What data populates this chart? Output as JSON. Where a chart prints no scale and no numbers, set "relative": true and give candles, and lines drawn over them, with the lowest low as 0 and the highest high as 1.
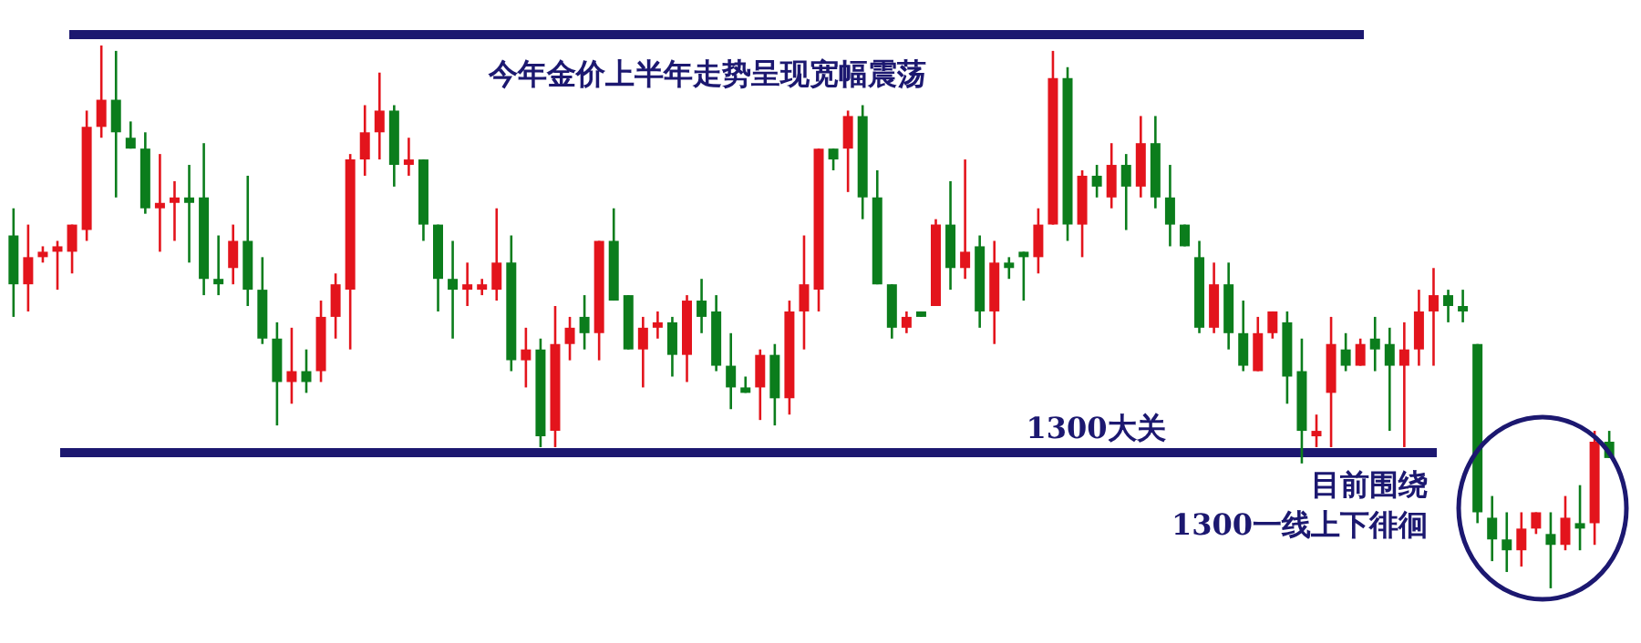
{
  "chart_data": {
    "type": "candlestick",
    "relative": true,
    "categories": [
      null,
      null,
      null,
      null,
      null,
      null,
      null,
      null,
      null,
      null,
      null,
      null,
      null,
      null,
      null,
      null,
      null,
      null,
      null,
      null,
      null,
      null,
      null,
      null,
      null,
      null,
      null,
      null,
      null,
      null,
      null,
      null,
      null,
      null,
      null,
      null,
      null,
      null,
      null,
      null,
      null,
      null,
      null,
      null,
      null,
      null,
      null,
      null,
      null,
      null,
      null,
      null,
      null,
      null,
      null,
      null,
      null,
      null,
      null,
      null,
      null,
      null,
      null,
      null,
      null,
      null,
      null,
      null,
      null,
      null,
      null,
      null,
      null,
      null,
      null,
      null,
      null,
      null,
      null,
      null,
      null,
      null,
      null,
      null,
      null,
      null,
      null,
      null,
      null,
      null,
      null,
      null,
      null,
      null,
      null,
      null,
      null,
      null,
      null,
      null,
      null,
      null,
      null,
      null,
      null,
      null,
      null,
      null,
      null,
      null
    ],
    "ohlc": [
      [
        0.65,
        0.7,
        0.5,
        0.56
      ],
      [
        0.56,
        0.67,
        0.51,
        0.61
      ],
      [
        0.61,
        0.63,
        0.6,
        0.62
      ],
      [
        0.62,
        0.64,
        0.55,
        0.63
      ],
      [
        0.62,
        0.67,
        0.58,
        0.67
      ],
      [
        0.66,
        0.88,
        0.64,
        0.85
      ],
      [
        0.85,
        1.0,
        0.83,
        0.9
      ],
      [
        0.9,
        0.99,
        0.72,
        0.84
      ],
      [
        0.83,
        0.86,
        0.81,
        0.81
      ],
      [
        0.81,
        0.84,
        0.69,
        0.7
      ],
      [
        0.7,
        0.8,
        0.62,
        0.71
      ],
      [
        0.71,
        0.75,
        0.64,
        0.72
      ],
      [
        0.72,
        0.78,
        0.6,
        0.71
      ],
      [
        0.72,
        0.82,
        0.54,
        0.57
      ],
      [
        0.57,
        0.65,
        0.54,
        0.56
      ],
      [
        0.59,
        0.67,
        0.56,
        0.64
      ],
      [
        0.64,
        0.76,
        0.52,
        0.55
      ],
      [
        0.55,
        0.61,
        0.45,
        0.46
      ],
      [
        0.46,
        0.49,
        0.3,
        0.38
      ],
      [
        0.38,
        0.48,
        0.34,
        0.4
      ],
      [
        0.4,
        0.44,
        0.36,
        0.38
      ],
      [
        0.4,
        0.53,
        0.38,
        0.5
      ],
      [
        0.5,
        0.58,
        0.46,
        0.56
      ],
      [
        0.55,
        0.8,
        0.44,
        0.79
      ],
      [
        0.79,
        0.89,
        0.76,
        0.84
      ],
      [
        0.84,
        0.95,
        0.79,
        0.88
      ],
      [
        0.88,
        0.89,
        0.74,
        0.78
      ],
      [
        0.78,
        0.83,
        0.76,
        0.79
      ],
      [
        0.79,
        0.79,
        0.64,
        0.67
      ],
      [
        0.67,
        0.67,
        0.51,
        0.57
      ],
      [
        0.57,
        0.64,
        0.46,
        0.55
      ],
      [
        0.55,
        0.6,
        0.52,
        0.56
      ],
      [
        0.55,
        0.57,
        0.54,
        0.56
      ],
      [
        0.55,
        0.7,
        0.53,
        0.6
      ],
      [
        0.6,
        0.65,
        0.4,
        0.42
      ],
      [
        0.42,
        0.48,
        0.37,
        0.44
      ],
      [
        0.44,
        0.46,
        0.26,
        0.28
      ],
      [
        0.29,
        0.52,
        0.26,
        0.45
      ],
      [
        0.45,
        0.5,
        0.42,
        0.48
      ],
      [
        0.5,
        0.54,
        0.44,
        0.47
      ],
      [
        0.47,
        0.64,
        0.42,
        0.64
      ],
      [
        0.64,
        0.7,
        0.53,
        0.53
      ],
      [
        0.54,
        0.54,
        0.44,
        0.44
      ],
      [
        0.44,
        0.5,
        0.37,
        0.48
      ],
      [
        0.48,
        0.51,
        0.46,
        0.49
      ],
      [
        0.49,
        0.5,
        0.39,
        0.43
      ],
      [
        0.43,
        0.54,
        0.38,
        0.53
      ],
      [
        0.53,
        0.57,
        0.47,
        0.5
      ],
      [
        0.51,
        0.54,
        0.4,
        0.41
      ],
      [
        0.41,
        0.47,
        0.33,
        0.37
      ],
      [
        0.37,
        0.39,
        0.36,
        0.36
      ],
      [
        0.37,
        0.44,
        0.31,
        0.43
      ],
      [
        0.43,
        0.45,
        0.3,
        0.35
      ],
      [
        0.35,
        0.53,
        0.32,
        0.51
      ],
      [
        0.51,
        0.65,
        0.44,
        0.56
      ],
      [
        0.55,
        0.81,
        0.51,
        0.81
      ],
      [
        0.81,
        0.81,
        0.77,
        0.79
      ],
      [
        0.81,
        0.88,
        0.73,
        0.87
      ],
      [
        0.87,
        0.89,
        0.68,
        0.72
      ],
      [
        0.72,
        0.77,
        0.56,
        0.56
      ],
      [
        0.56,
        0.56,
        0.46,
        0.48
      ],
      [
        0.48,
        0.51,
        0.47,
        0.5
      ],
      [
        0.51,
        0.51,
        0.5,
        0.5
      ],
      [
        0.52,
        0.68,
        0.52,
        0.67
      ],
      [
        0.67,
        0.75,
        0.55,
        0.59
      ],
      [
        0.59,
        0.79,
        0.57,
        0.62
      ],
      [
        0.63,
        0.65,
        0.48,
        0.51
      ],
      [
        0.51,
        0.64,
        0.45,
        0.6
      ],
      [
        0.6,
        0.61,
        0.57,
        0.59
      ],
      [
        0.62,
        0.62,
        0.53,
        0.61
      ],
      [
        0.61,
        0.7,
        0.58,
        0.67
      ],
      [
        0.67,
        0.99,
        0.67,
        0.94
      ],
      [
        0.94,
        0.96,
        0.64,
        0.67
      ],
      [
        0.67,
        0.77,
        0.61,
        0.76
      ],
      [
        0.76,
        0.78,
        0.72,
        0.74
      ],
      [
        0.72,
        0.82,
        0.7,
        0.78
      ],
      [
        0.78,
        0.8,
        0.66,
        0.74
      ],
      [
        0.74,
        0.87,
        0.72,
        0.82
      ],
      [
        0.82,
        0.87,
        0.7,
        0.72
      ],
      [
        0.72,
        0.78,
        0.63,
        0.67
      ],
      [
        0.67,
        0.67,
        0.63,
        0.63
      ],
      [
        0.61,
        0.64,
        0.47,
        0.48
      ],
      [
        0.48,
        0.6,
        0.47,
        0.56
      ],
      [
        0.56,
        0.6,
        0.44,
        0.47
      ],
      [
        0.47,
        0.53,
        0.4,
        0.41
      ],
      [
        0.4,
        0.5,
        0.4,
        0.47
      ],
      [
        0.47,
        0.51,
        0.46,
        0.51
      ],
      [
        0.49,
        0.51,
        0.34,
        0.39
      ],
      [
        0.4,
        0.46,
        0.23,
        0.29
      ],
      [
        0.28,
        0.32,
        0.26,
        0.29
      ],
      [
        0.36,
        0.5,
        0.26,
        0.45
      ],
      [
        0.44,
        0.47,
        0.4,
        0.41
      ],
      [
        0.41,
        0.46,
        0.41,
        0.45
      ],
      [
        0.46,
        0.5,
        0.4,
        0.44
      ],
      [
        0.45,
        0.48,
        0.29,
        0.41
      ],
      [
        0.41,
        0.49,
        0.26,
        0.44
      ],
      [
        0.44,
        0.55,
        0.41,
        0.51
      ],
      [
        0.51,
        0.59,
        0.41,
        0.54
      ],
      [
        0.54,
        0.55,
        0.49,
        0.52
      ],
      [
        0.52,
        0.55,
        0.49,
        0.51
      ],
      [
        0.45,
        0.45,
        0.12,
        0.14
      ],
      [
        0.13,
        0.17,
        0.05,
        0.09
      ],
      [
        0.09,
        0.14,
        0.03,
        0.07
      ],
      [
        0.07,
        0.14,
        0.04,
        0.11
      ],
      [
        0.11,
        0.14,
        0.1,
        0.14
      ],
      [
        0.1,
        0.14,
        0.0,
        0.08
      ],
      [
        0.08,
        0.17,
        0.07,
        0.13
      ],
      [
        0.12,
        0.19,
        0.07,
        0.11
      ],
      [
        0.12,
        0.29,
        0.08,
        0.27
      ],
      [
        0.27,
        0.29,
        0.24,
        0.24
      ]
    ],
    "ref_lines": [
      {
        "axis": "y",
        "value": 1.02,
        "label": "今年金价上半年走势呈现宽幅震荡",
        "color": "#1c1870"
      },
      {
        "axis": "y",
        "value": 0.25,
        "label": "1300大关",
        "color": "#1c1870"
      }
    ],
    "annotations": [
      "目前围绕\n1300一线上下徘徊"
    ]
  }
}
